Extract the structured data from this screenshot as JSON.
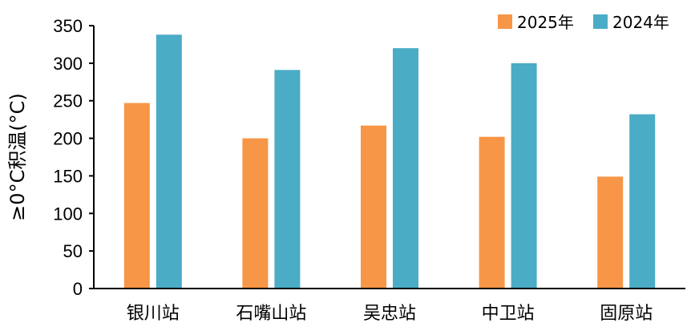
{
  "chart_data": {
    "type": "bar",
    "title": "",
    "xlabel": "",
    "ylabel": "≥0°C积温(°C)",
    "categories": [
      "银川站",
      "石嘴山站",
      "吴忠站",
      "中卫站",
      "固原站"
    ],
    "series": [
      {
        "name": "2025年",
        "color": "#F79646",
        "values": [
          247,
          200,
          217,
          202,
          149
        ]
      },
      {
        "name": "2024年",
        "color": "#4BACC6",
        "values": [
          338,
          291,
          320,
          300,
          232
        ]
      }
    ],
    "ylim": [
      0,
      350
    ],
    "yticks": [
      "0",
      "50",
      "100",
      "150",
      "200",
      "250",
      "300",
      "350"
    ],
    "grid": false,
    "legend_position": "top-right"
  }
}
